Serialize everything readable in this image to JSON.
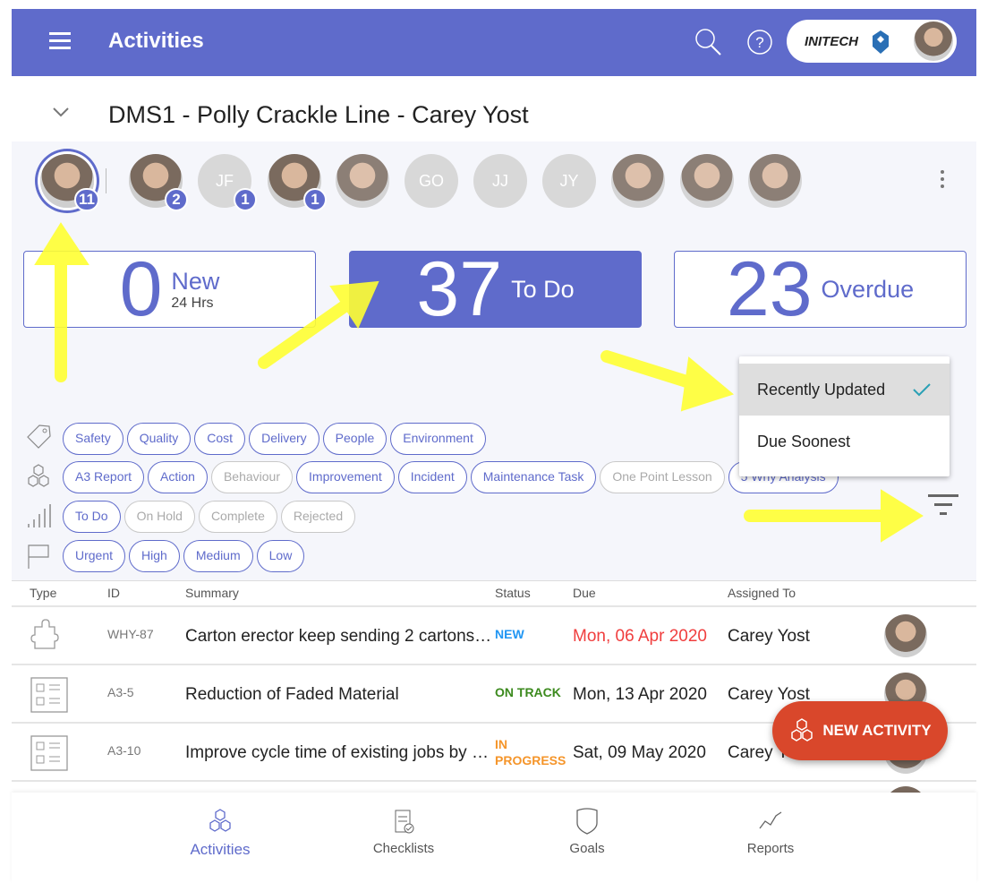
{
  "header": {
    "title": "Activities",
    "org_name": "INITECH",
    "icons": [
      "menu-icon",
      "search-icon",
      "help-icon"
    ]
  },
  "page": {
    "title": "DMS1 - Polly Crackle Line - Carey Yost"
  },
  "team": [
    {
      "initials": "",
      "badge": "11",
      "selected": true
    },
    {
      "initials": "",
      "badge": "2"
    },
    {
      "initials": "JF",
      "badge": "1"
    },
    {
      "initials": "",
      "badge": "1"
    },
    {
      "initials": ""
    },
    {
      "initials": "GO"
    },
    {
      "initials": "JJ"
    },
    {
      "initials": "JY"
    },
    {
      "initials": ""
    },
    {
      "initials": ""
    },
    {
      "initials": ""
    }
  ],
  "stats": [
    {
      "value": "0",
      "label": "New",
      "sub": "24 Hrs"
    },
    {
      "value": "37",
      "label": "To Do",
      "selected": true
    },
    {
      "value": "23",
      "label": "Overdue"
    }
  ],
  "sort_menu": {
    "items": [
      "Recently Updated",
      "Due Soonest"
    ],
    "selected": "Recently Updated"
  },
  "filters": {
    "categories": [
      {
        "l": "Safety"
      },
      {
        "l": "Quality"
      },
      {
        "l": "Cost"
      },
      {
        "l": "Delivery"
      },
      {
        "l": "People"
      },
      {
        "l": "Environment"
      }
    ],
    "types": [
      {
        "l": "A3 Report"
      },
      {
        "l": "Action"
      },
      {
        "l": "Behaviour",
        "off": true
      },
      {
        "l": "Improvement"
      },
      {
        "l": "Incident"
      },
      {
        "l": "Maintenance Task"
      },
      {
        "l": "One Point Lesson",
        "off": true
      },
      {
        "l": "5 Why Analysis"
      }
    ],
    "statuses": [
      {
        "l": "To Do"
      },
      {
        "l": "On Hold",
        "off": true
      },
      {
        "l": "Complete",
        "off": true
      },
      {
        "l": "Rejected",
        "off": true
      }
    ],
    "priorities": [
      {
        "l": "Urgent"
      },
      {
        "l": "High"
      },
      {
        "l": "Medium"
      },
      {
        "l": "Low"
      }
    ]
  },
  "table": {
    "headers": [
      "Type",
      "ID",
      "Summary",
      "Status",
      "Due",
      "Assigned To"
    ],
    "rows": [
      {
        "type": "puzzle-icon",
        "id": "WHY-87",
        "summary": "Carton erector keep sending 2 cartons…",
        "status": "NEW",
        "status_color": "#2196f3",
        "due": "Mon, 06 Apr 2020",
        "due_color": "#f03e3e",
        "assigned": "Carey Yost"
      },
      {
        "type": "a3-report-icon",
        "id": "A3-5",
        "summary": "Reduction of Faded Material",
        "status": "ON TRACK",
        "status_color": "#3c8a1e",
        "due": "Mon, 13 Apr 2020",
        "due_color": "#222",
        "assigned": "Carey Yost"
      },
      {
        "type": "a3-report-icon",
        "id": "A3-10",
        "summary": "Improve cycle time of existing jobs by …",
        "status": "IN PROGRESS",
        "status_color": "#f5952a",
        "due": "Sat, 09 May 2020",
        "due_color": "#222",
        "assigned": "Carey Yost"
      }
    ]
  },
  "fab": {
    "label": "NEW ACTIVITY"
  },
  "nav": [
    {
      "label": "Activities",
      "active": true
    },
    {
      "label": "Checklists"
    },
    {
      "label": "Goals"
    },
    {
      "label": "Reports"
    }
  ],
  "colors": {
    "brand": "#5f6bcb",
    "fab": "#d9472b",
    "annotation": "#ffff33"
  }
}
